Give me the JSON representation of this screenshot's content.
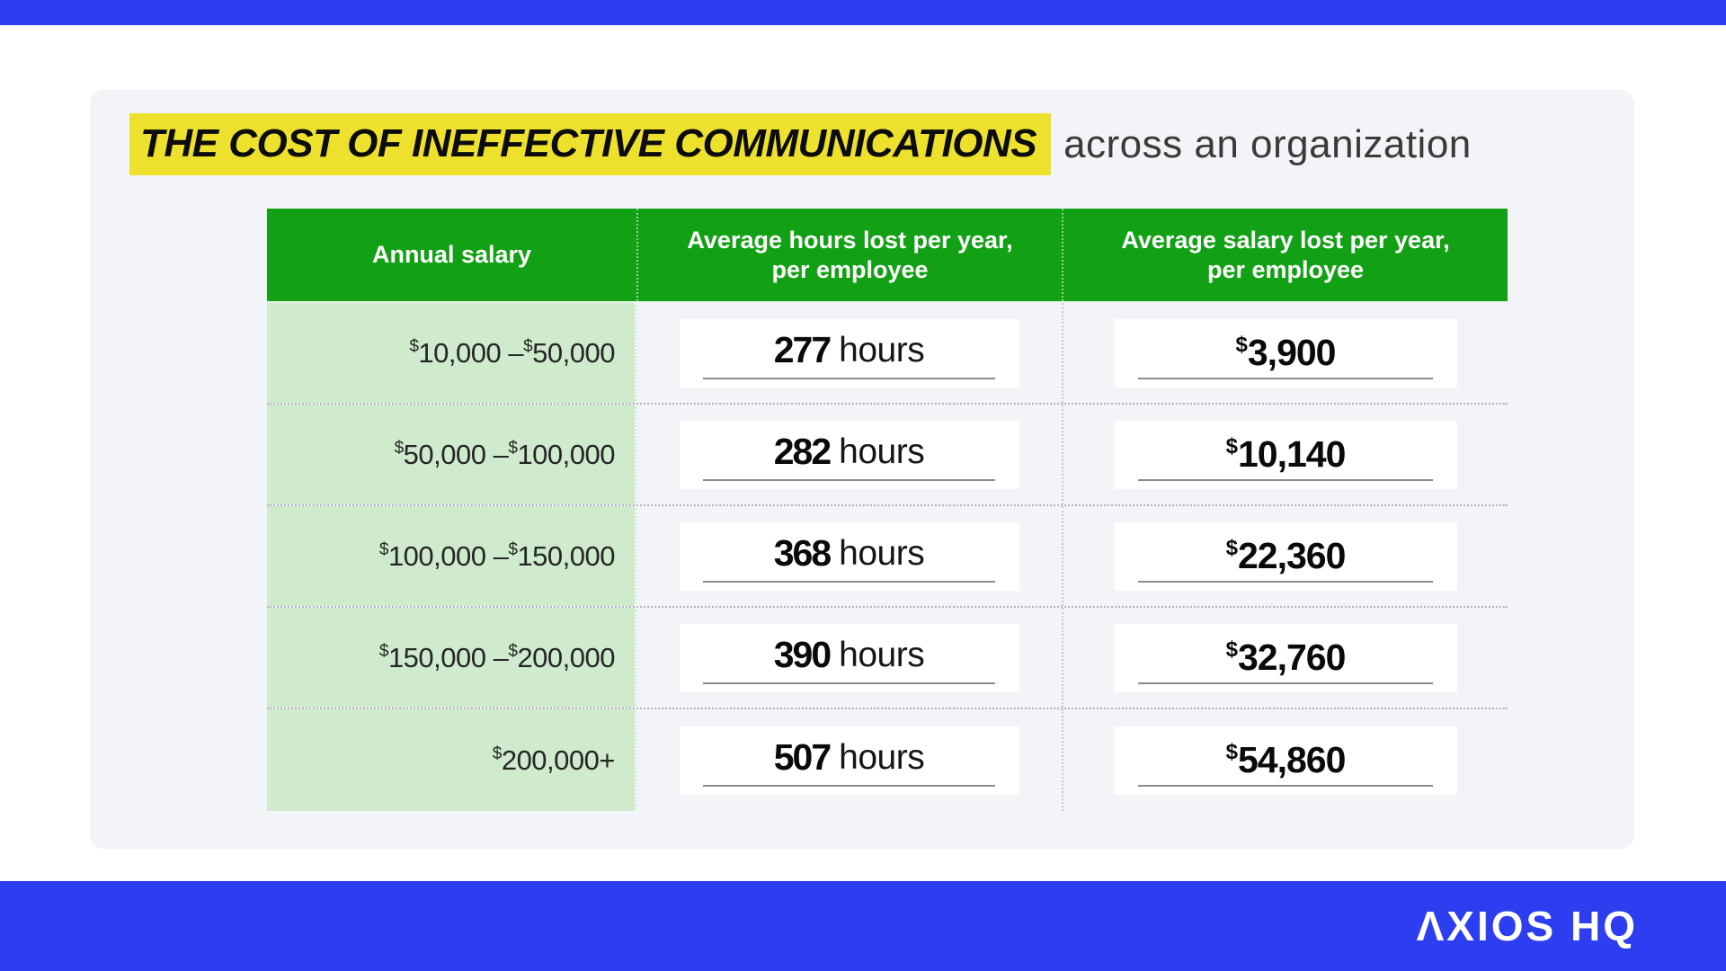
{
  "title": {
    "highlight": "THE COST OF INEFFECTIVE COMMUNICATIONS",
    "suffix": "across an organization"
  },
  "table": {
    "columns": [
      {
        "line1": "Annual salary",
        "line2": ""
      },
      {
        "line1": "Average hours lost per year,",
        "line2": "per employee"
      },
      {
        "line1": "Average salary lost per year,",
        "line2": "per employee"
      }
    ],
    "rows": [
      {
        "s1sym": "$",
        "s1": "10,000",
        "dash": " –",
        "s2sym": "$",
        "s2": "50,000",
        "hours": "277",
        "unit": "hours",
        "msym": "$",
        "mval": "3,900"
      },
      {
        "s1sym": "$",
        "s1": "50,000",
        "dash": " –",
        "s2sym": "$",
        "s2": "100,000",
        "hours": "282",
        "unit": "hours",
        "msym": "$",
        "mval": "10,140"
      },
      {
        "s1sym": "$",
        "s1": "100,000",
        "dash": " –",
        "s2sym": "$",
        "s2": "150,000",
        "hours": "368",
        "unit": "hours",
        "msym": "$",
        "mval": "22,360"
      },
      {
        "s1sym": "$",
        "s1": "150,000",
        "dash": " –",
        "s2sym": "$",
        "s2": "200,000",
        "hours": "390",
        "unit": "hours",
        "msym": "$",
        "mval": "32,760"
      },
      {
        "s1sym": "$",
        "s1": "200,000+",
        "dash": "",
        "s2sym": "",
        "s2": "",
        "hours": "507",
        "unit": "hours",
        "msym": "$",
        "mval": "54,860"
      }
    ]
  },
  "footer": {
    "logo_text": "ΛXIOS HQ"
  },
  "colors": {
    "accent_blue": "#2C3EF0",
    "header_green": "#12A014",
    "row_light_green": "#CFEACD",
    "highlight_yellow": "#EDE12E",
    "card_background": "#F3F4F8",
    "underline_gray": "#8C8C8C"
  },
  "chart_data": {
    "type": "table",
    "title": "THE COST OF INEFFECTIVE COMMUNICATIONS across an organization",
    "columns": [
      "Annual salary",
      "Average hours lost per year, per employee",
      "Average salary lost per year, per employee"
    ],
    "rows": [
      {
        "annual_salary": "$10,000 – $50,000",
        "avg_hours_lost_per_year": 277,
        "avg_salary_lost_per_year_usd": 3900
      },
      {
        "annual_salary": "$50,000 – $100,000",
        "avg_hours_lost_per_year": 282,
        "avg_salary_lost_per_year_usd": 10140
      },
      {
        "annual_salary": "$100,000 – $150,000",
        "avg_hours_lost_per_year": 368,
        "avg_salary_lost_per_year_usd": 22360
      },
      {
        "annual_salary": "$150,000 – $200,000",
        "avg_hours_lost_per_year": 390,
        "avg_salary_lost_per_year_usd": 32760
      },
      {
        "annual_salary": "$200,000+",
        "avg_hours_lost_per_year": 507,
        "avg_salary_lost_per_year_usd": 54860
      }
    ]
  }
}
